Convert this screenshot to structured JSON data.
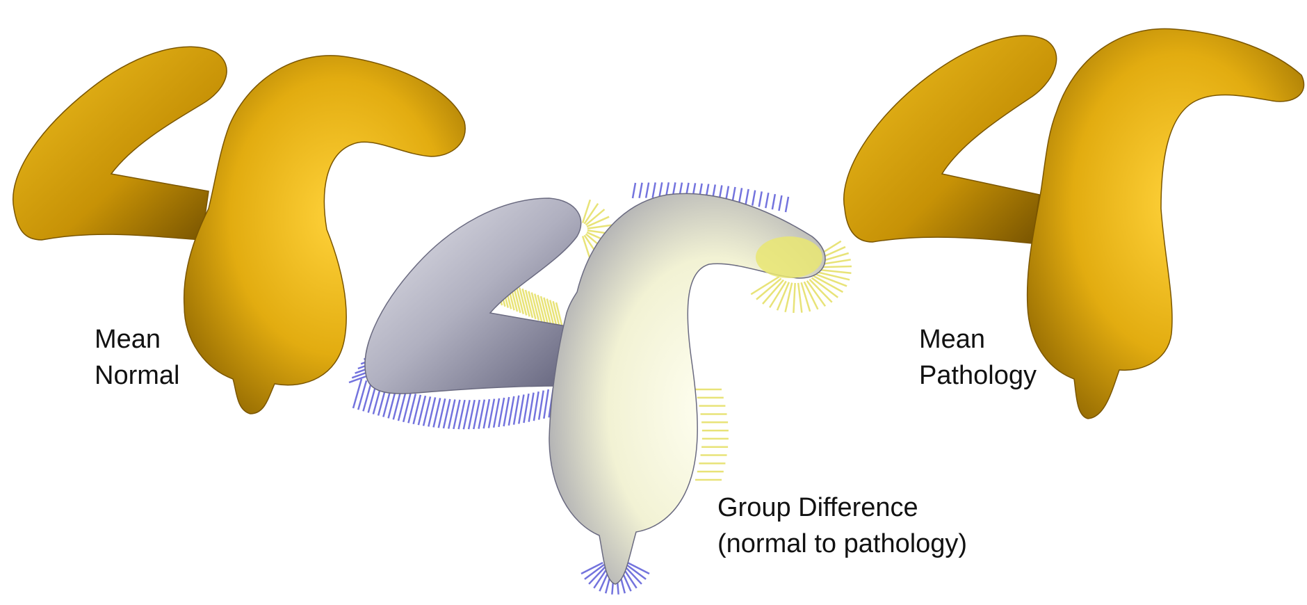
{
  "figure": {
    "left_panel": {
      "label_line1": "Mean",
      "label_line2": "Normal",
      "shape_color": "#d6a20a"
    },
    "right_panel": {
      "label_line1": "Mean",
      "label_line2": "Pathology",
      "shape_color": "#d6a20a"
    },
    "center_panel": {
      "label_line1": "Group Difference",
      "label_line2": "(normal to pathology)",
      "outward_arrow_color": "#e6e06a",
      "inward_arrow_color": "#5b5bd8",
      "shape_color": "#f3f3dc"
    }
  }
}
